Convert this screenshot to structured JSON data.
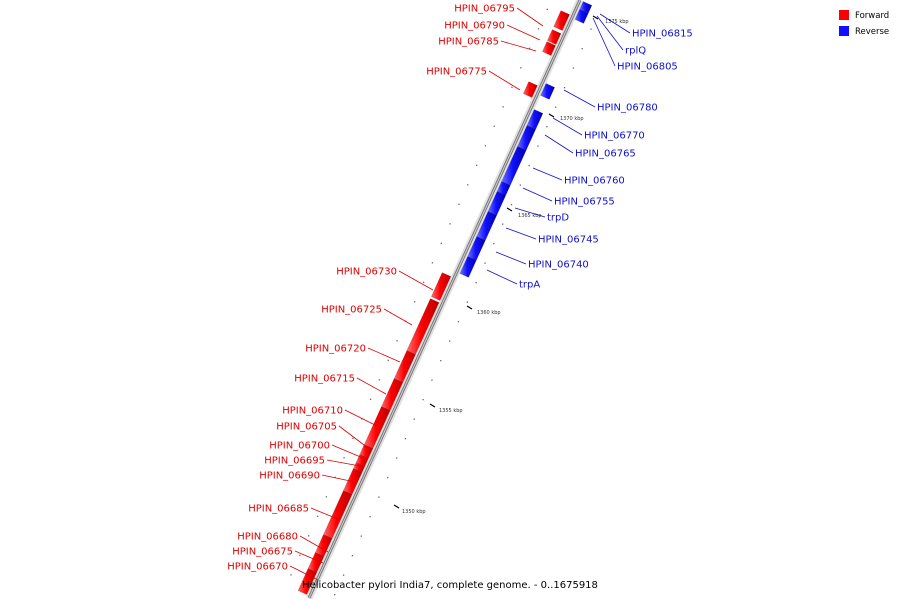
{
  "legend": {
    "forward_label": "Forward",
    "reverse_label": "Reverse",
    "forward_color": "#ff0000",
    "reverse_color": "#1010ff"
  },
  "caption": "Helicobacter pylori India7, complete genome. - 0..1675918",
  "ticks": [
    "1350 kbp",
    "1355 kbp",
    "1360 kbp",
    "1365 kbp",
    "1370 kbp",
    "1375 kbp"
  ],
  "genes_forward": [
    "HPIN_06795",
    "HPIN_06790",
    "HPIN_06785",
    "HPIN_06775",
    "HPIN_06730",
    "HPIN_06725",
    "HPIN_06720",
    "HPIN_06715",
    "HPIN_06710",
    "HPIN_06705",
    "HPIN_06700",
    "HPIN_06695",
    "HPIN_06690",
    "HPIN_06685",
    "HPIN_06680",
    "HPIN_06675",
    "HPIN_06670"
  ],
  "genes_reverse": [
    "HPIN_06815",
    "rplQ",
    "HPIN_06805",
    "HPIN_06780",
    "HPIN_06770",
    "HPIN_06765",
    "HPIN_06760",
    "HPIN_06755",
    "trpD",
    "HPIN_06745",
    "HPIN_06740",
    "trpA"
  ]
}
